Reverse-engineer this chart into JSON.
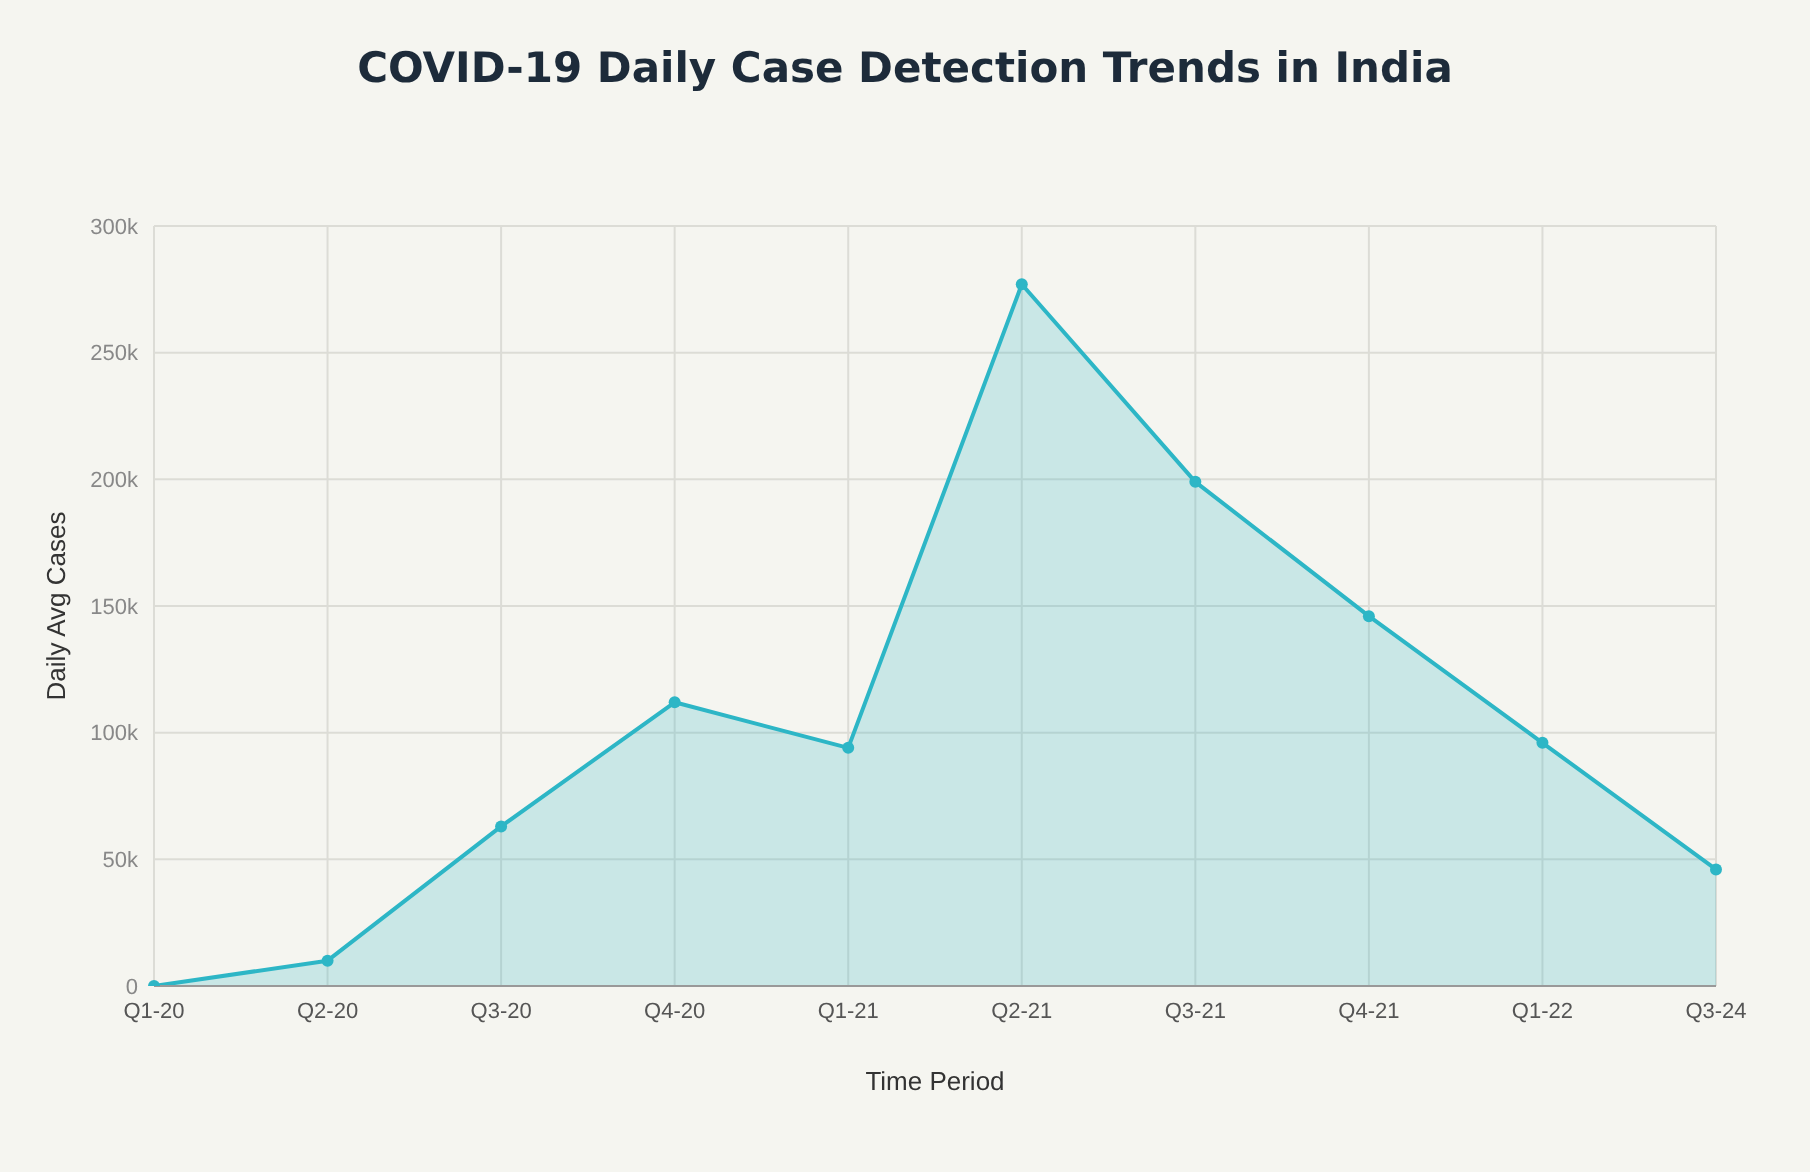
{
  "chart_data": {
    "type": "area",
    "title": "COVID-19 Daily Case Detection Trends in India",
    "xlabel": "Time Period",
    "ylabel": "Daily Avg Cases",
    "categories": [
      "Q1-20",
      "Q2-20",
      "Q3-20",
      "Q4-20",
      "Q1-21",
      "Q2-21",
      "Q3-21",
      "Q4-21",
      "Q1-22",
      "Q3-24"
    ],
    "series": [
      {
        "color": "#2db6c6",
        "values": [
          0,
          10000,
          63000,
          112000,
          94000,
          277000,
          199000,
          146000,
          96000,
          46000
        ]
      }
    ],
    "ylim": [
      0,
      300000
    ],
    "yticks": [
      0,
      {
        "value": 50000,
        "label": "50k"
      },
      {
        "value": 100000,
        "label": "100k"
      },
      {
        "value": 150000,
        "label": "150k"
      },
      {
        "value": 200000,
        "label": "200k"
      },
      {
        "value": 250000,
        "label": "250k"
      },
      {
        "value": 300000,
        "label": "300k"
      }
    ],
    "grid": true,
    "marker": "circle",
    "legend": false
  }
}
